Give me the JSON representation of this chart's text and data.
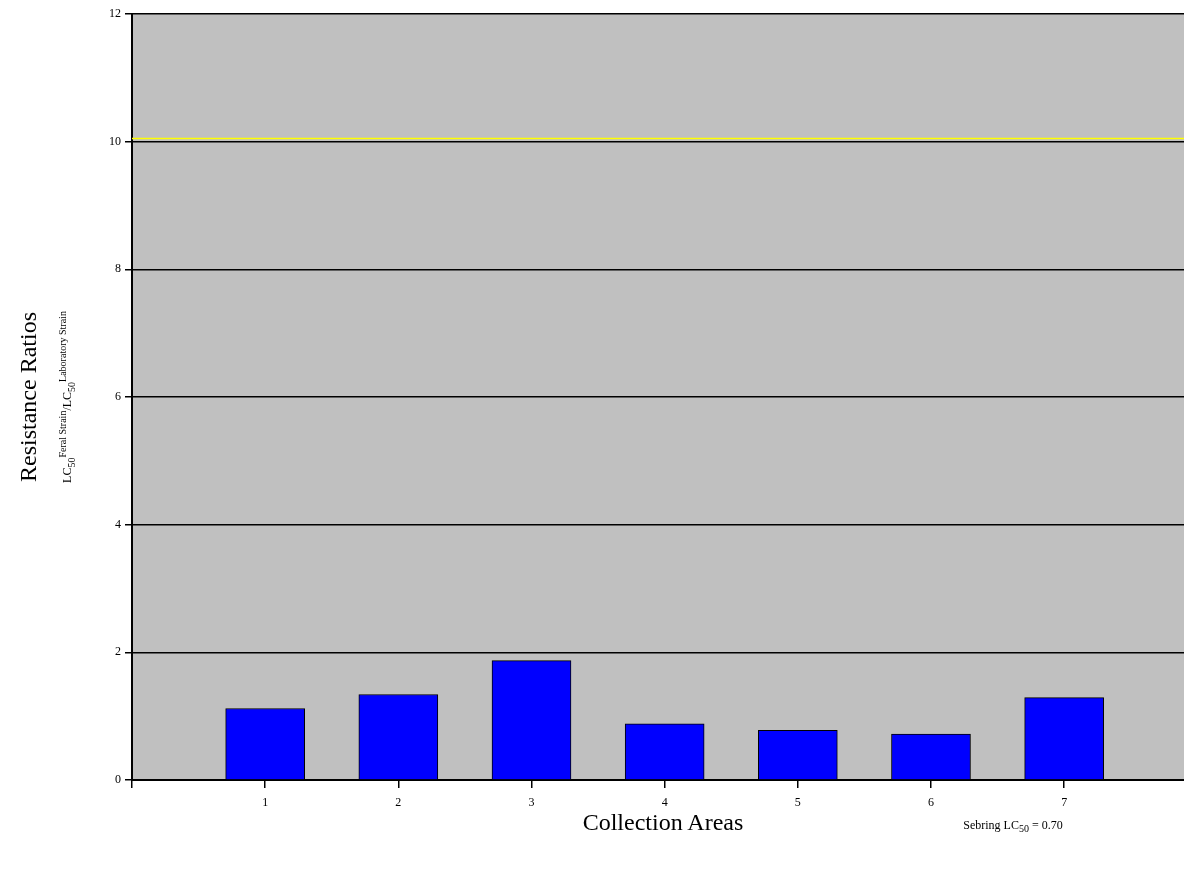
{
  "chart_data": {
    "type": "bar",
    "xlabel": "Collection Areas",
    "ylabel": "Resistance Ratios",
    "annotations": [
      "LC$_{50}$$^{Feral Strain}$/LC$_{50}$$^{Laboratory Strain}$",
      "Sebring LC$_{50}$ = 0.70"
    ],
    "x": [
      1,
      2,
      3,
      4,
      5,
      6,
      7
    ],
    "values": [
      1.12,
      1.34,
      1.87,
      0.88,
      0.78,
      0.72,
      1.29
    ],
    "color": "#0000ff",
    "xlim": [
      0,
      7.9
    ],
    "xticks": [
      {
        "value": 0,
        "label": null
      },
      1,
      2,
      3,
      4,
      5,
      6,
      7
    ],
    "ylim": [
      0,
      12
    ],
    "yticks": [
      0,
      2,
      4,
      6,
      8,
      10,
      12
    ],
    "grid": "y",
    "ref_lines": [
      {
        "axis": "y",
        "value": 10.05,
        "color": "#ffff00"
      }
    ]
  }
}
